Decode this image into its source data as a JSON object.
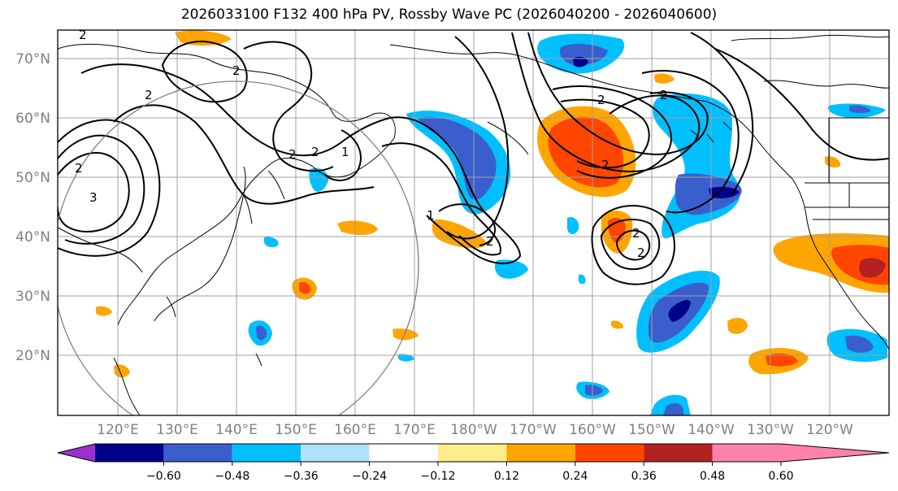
{
  "title": "2026033100 F132 400 hPa PV, Rossby Wave PC (2026040200 - 2026040600)",
  "lat_labels": [
    "70°N",
    "60°N",
    "50°N",
    "40°N",
    "30°N",
    "20°N"
  ],
  "lon_labels": [
    "120°E",
    "130°E",
    "140°E",
    "150°E",
    "160°E",
    "170°E",
    "180°W",
    "170°W",
    "160°W",
    "150°W",
    "140°W",
    "130°W",
    "120°W"
  ],
  "colorbar": {
    "colors": [
      "#9932cc",
      "#00008b",
      "#3a5fcd",
      "#00bfff",
      "#b0e2ff",
      "#ffffff",
      "#ffec8b",
      "#ffa500",
      "#ff4500",
      "#b22222",
      "#ff82ab"
    ],
    "tick_labels": [
      "−0.60",
      "−0.48",
      "−0.36",
      "−0.24",
      "−0.12",
      "0.12",
      "0.24",
      "0.36",
      "0.48",
      "0.60"
    ]
  },
  "contour_labels": [
    "2",
    "2",
    "2",
    "2",
    "2",
    "2",
    "1",
    "1",
    "3",
    "2",
    "2",
    "2",
    "2",
    "2",
    "2"
  ],
  "colors": {
    "grid": "#a0a0a0",
    "axis_label": "#808080"
  }
}
